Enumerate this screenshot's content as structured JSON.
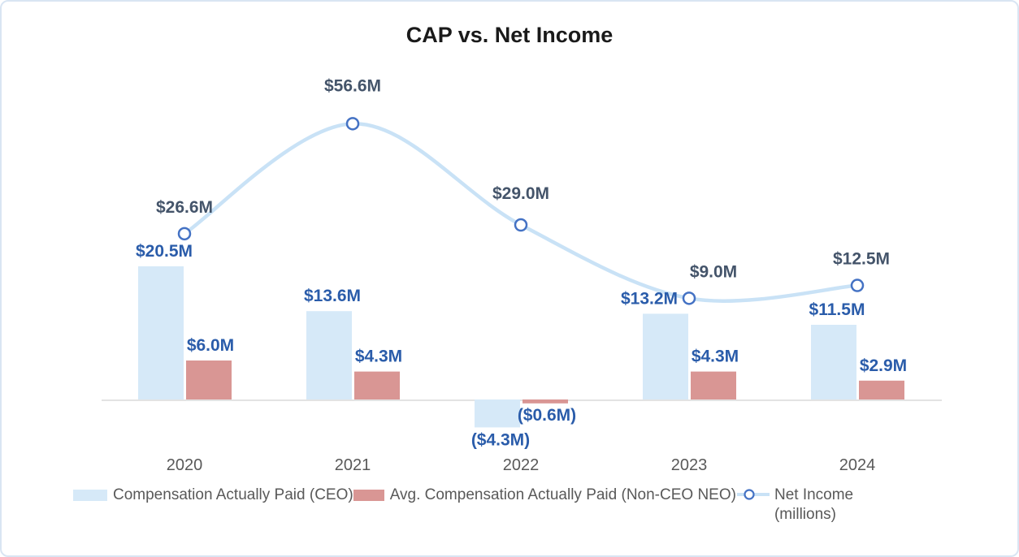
{
  "chart_data": {
    "type": "combo-bar-line",
    "title": "CAP vs. Net Income",
    "categories": [
      "2020",
      "2021",
      "2022",
      "2023",
      "2024"
    ],
    "series": [
      {
        "name": "Compensation Actually Paid (CEO)",
        "type": "bar",
        "color": "#d6e9f8",
        "values": [
          20.5,
          13.6,
          -4.3,
          13.2,
          11.5
        ],
        "labels": [
          "$20.5M",
          "$13.6M",
          "($4.3M)",
          "$13.2M",
          "$11.5M"
        ]
      },
      {
        "name": "Avg. Compensation Actually Paid (Non-CEO NEO)",
        "type": "bar",
        "color": "#d99694",
        "values": [
          6.0,
          4.3,
          -0.6,
          4.3,
          2.9
        ],
        "labels": [
          "$6.0M",
          "$4.3M",
          "($0.6M)",
          "$4.3M",
          "$2.9M"
        ]
      },
      {
        "name": "Net Income (millions)",
        "type": "line",
        "axis": "secondary",
        "line_color": "#c9e2f6",
        "marker_stroke": "#4472c4",
        "marker_fill": "#ffffff",
        "values": [
          26.6,
          56.6,
          29.0,
          9.0,
          12.5
        ],
        "labels": [
          "$26.6M",
          "$56.6M",
          "$29.0M",
          "$9.0M",
          "$12.5M"
        ]
      }
    ],
    "label_colors": {
      "cap_labels": "#2a5caa",
      "net_labels": "#44546a"
    },
    "category_label_color": "#595959",
    "axis_line_color": "#e3e3e3",
    "legend_position": "bottom",
    "gridlines": false,
    "value_axes_visible": false
  }
}
